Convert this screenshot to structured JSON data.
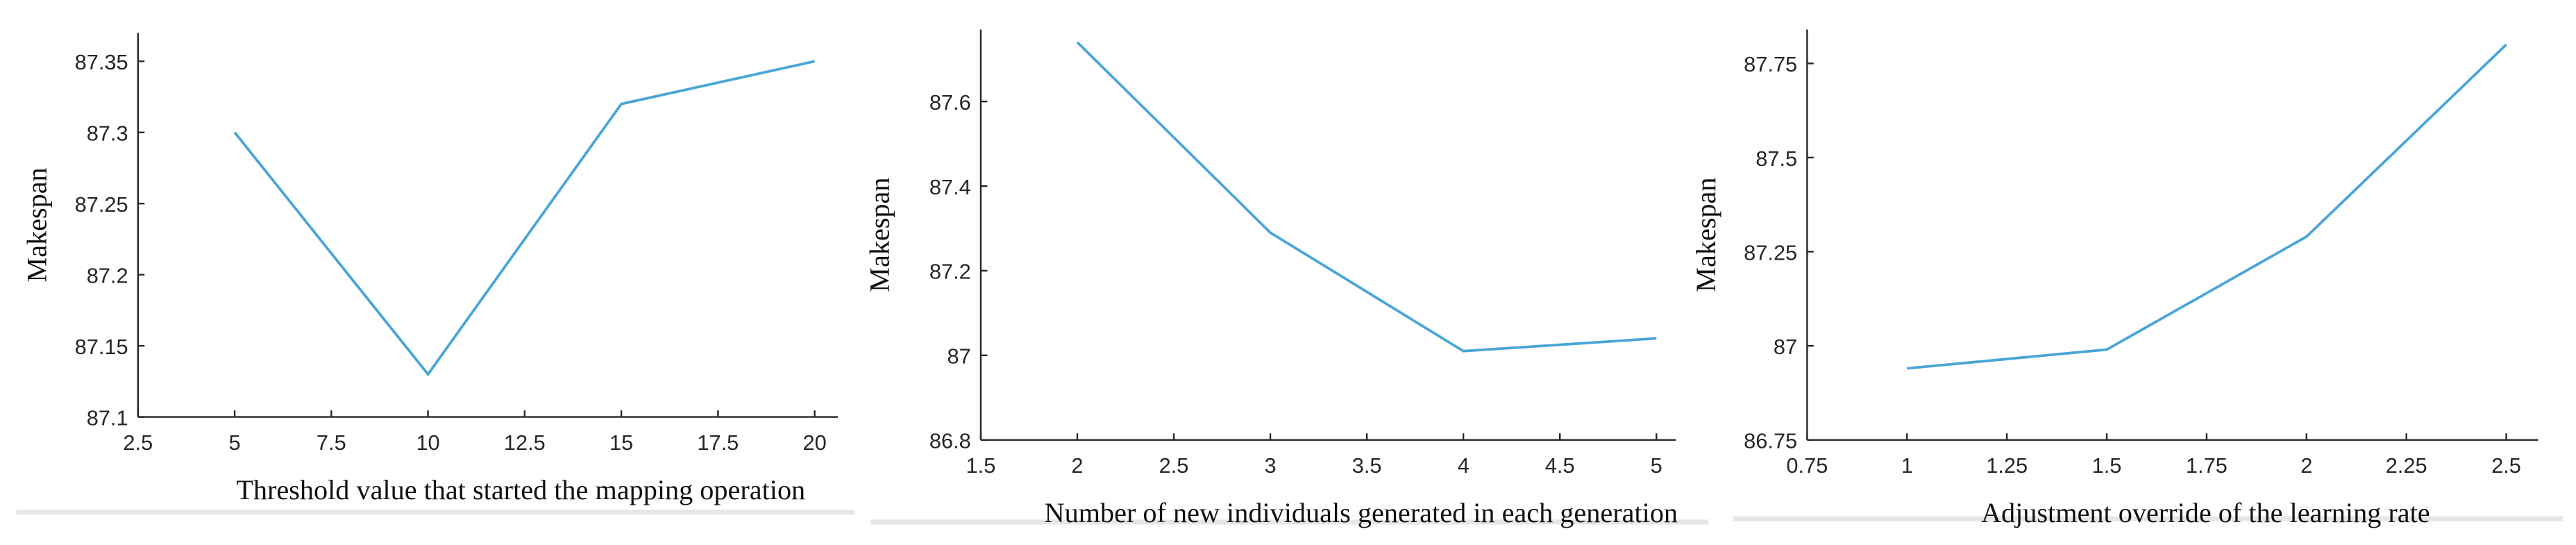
{
  "chart_data": [
    {
      "type": "line",
      "x_label": "Threshold value that started the mapping operation",
      "y_label": "Makespan",
      "x": [
        5,
        10,
        15,
        20
      ],
      "values": [
        87.3,
        87.13,
        87.32,
        87.35
      ],
      "color": "#4aa6d6",
      "xlim": [
        2.5,
        20.6
      ],
      "xticks": [
        2.5,
        5,
        7.5,
        10,
        12.5,
        15,
        17.5,
        20
      ],
      "ylim": [
        87.1,
        87.37
      ],
      "yticks": [
        87.1,
        87.15,
        87.2,
        87.25,
        87.3,
        87.35
      ]
    },
    {
      "type": "line",
      "x_label": "Number of new individuals generated in each generation",
      "y_label": "Makespan",
      "x": [
        2,
        3,
        4,
        5
      ],
      "values": [
        87.74,
        87.29,
        87.01,
        87.04
      ],
      "color": "#4aa6d6",
      "xlim": [
        1.5,
        5.1
      ],
      "xticks": [
        1.5,
        2,
        2.5,
        3,
        3.5,
        4,
        4.5,
        5
      ],
      "ylim": [
        86.8,
        87.77
      ],
      "yticks": [
        86.8,
        87,
        87.2,
        87.4,
        87.6
      ]
    },
    {
      "type": "line",
      "x_label": "Adjustment override of the learning rate",
      "y_label": "Makespan",
      "x": [
        1,
        1.5,
        2,
        2.5
      ],
      "values": [
        86.94,
        86.99,
        87.29,
        87.8
      ],
      "color": "#4aa6d6",
      "xlim": [
        0.75,
        2.58
      ],
      "xticks": [
        0.75,
        1,
        1.25,
        1.5,
        1.75,
        2,
        2.25,
        2.5
      ],
      "ylim": [
        86.75,
        87.84
      ],
      "yticks": [
        86.75,
        87,
        87.25,
        87.5,
        87.75
      ]
    }
  ]
}
